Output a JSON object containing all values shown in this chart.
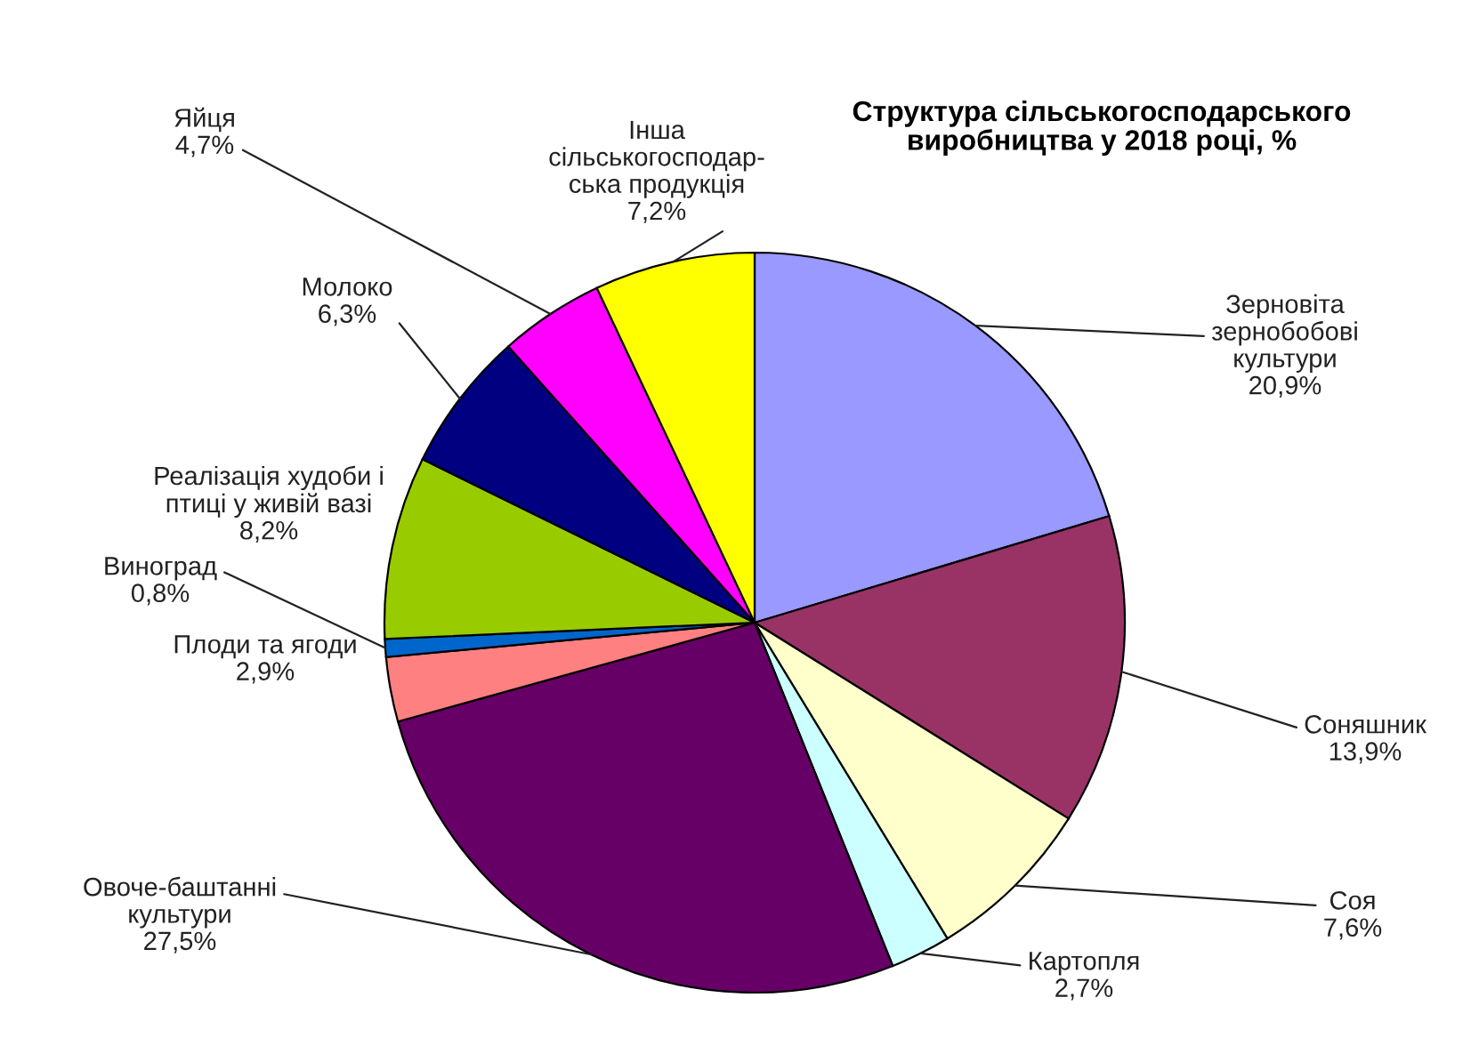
{
  "chart_data": {
    "type": "pie",
    "title": "Структура сільськогосподарського\nвиробництва у 2018 році, %",
    "categories": [
      "Зерновіта\nзернобобові\nкультури",
      "Соняшник",
      "Соя",
      "Картопля",
      "Овоче-баштанні\nкультури",
      "Плоди та ягоди",
      "Виноград",
      "Реалізація худоби і\nптиці у живій вазі",
      "Молоко",
      "Яйця",
      "Інша\nсільськогосподар-\nська продукція"
    ],
    "values": [
      20.9,
      13.9,
      7.6,
      2.7,
      27.5,
      2.9,
      0.8,
      8.2,
      6.3,
      4.7,
      7.2
    ],
    "colors": [
      "#9999ff",
      "#993366",
      "#ffffcc",
      "#ccffff",
      "#660066",
      "#ff8080",
      "#0066cc",
      "#99cc00",
      "#000080",
      "#ff00ff",
      "#ffff00"
    ],
    "value_labels": [
      "20,9%",
      "13,9%",
      "7,6%",
      "2,7%",
      "27,5%",
      "2,9%",
      "0,8%",
      "8,2%",
      "6,3%",
      "4,7%",
      "7,2%"
    ]
  }
}
